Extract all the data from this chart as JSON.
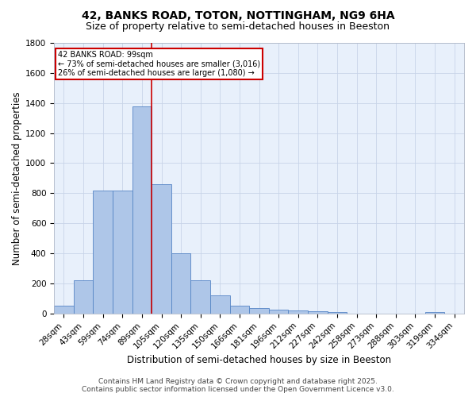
{
  "title": "42, BANKS ROAD, TOTON, NOTTINGHAM, NG9 6HA",
  "subtitle": "Size of property relative to semi-detached houses in Beeston",
  "xlabel": "Distribution of semi-detached houses by size in Beeston",
  "ylabel": "Number of semi-detached properties",
  "bar_labels": [
    "28sqm",
    "43sqm",
    "59sqm",
    "74sqm",
    "89sqm",
    "105sqm",
    "120sqm",
    "135sqm",
    "150sqm",
    "166sqm",
    "181sqm",
    "196sqm",
    "212sqm",
    "227sqm",
    "242sqm",
    "258sqm",
    "273sqm",
    "288sqm",
    "303sqm",
    "319sqm",
    "334sqm"
  ],
  "bar_values": [
    50,
    220,
    820,
    820,
    1380,
    860,
    400,
    220,
    120,
    50,
    35,
    25,
    20,
    15,
    10,
    0,
    0,
    0,
    0,
    10,
    0
  ],
  "bar_color": "#aec6e8",
  "bar_edge_color": "#5585c5",
  "bg_color": "#e8f0fb",
  "grid_color": "#c8d4e8",
  "annotation_text": "42 BANKS ROAD: 99sqm\n← 73% of semi-detached houses are smaller (3,016)\n26% of semi-detached houses are larger (1,080) →",
  "vline_color": "#cc0000",
  "annotation_box_color": "#ffffff",
  "annotation_box_edge_color": "#cc0000",
  "ylim": [
    0,
    1800
  ],
  "yticks": [
    0,
    200,
    400,
    600,
    800,
    1000,
    1200,
    1400,
    1600,
    1800
  ],
  "footer_line1": "Contains HM Land Registry data © Crown copyright and database right 2025.",
  "footer_line2": "Contains public sector information licensed under the Open Government Licence v3.0.",
  "title_fontsize": 10,
  "subtitle_fontsize": 9,
  "axis_label_fontsize": 8.5,
  "tick_fontsize": 7.5,
  "footer_fontsize": 6.5
}
